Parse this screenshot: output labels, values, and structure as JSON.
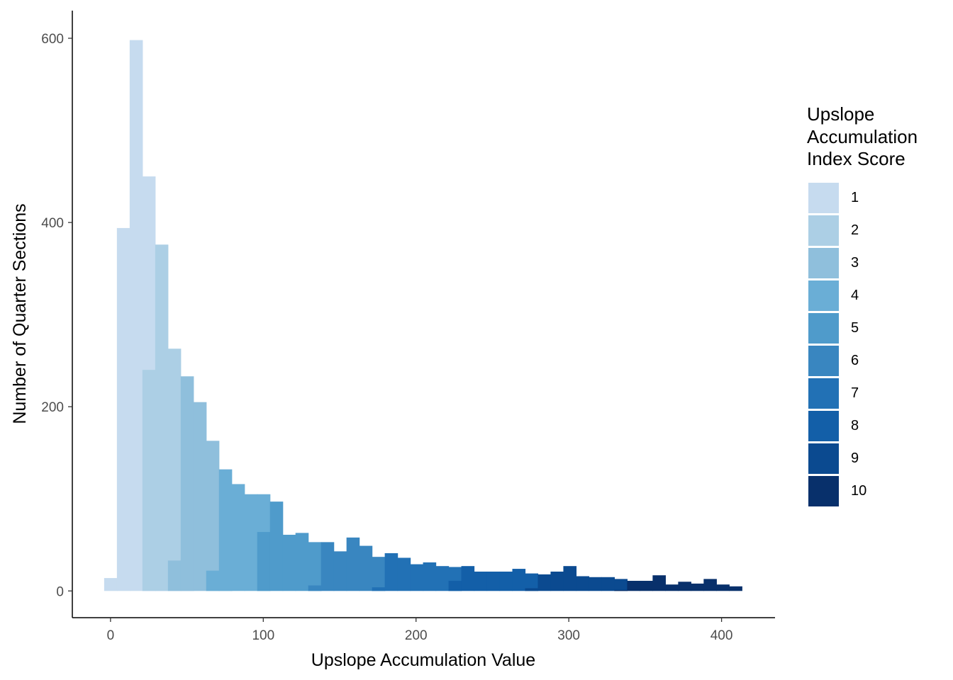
{
  "chart_data": {
    "type": "bar",
    "subtype": "histogram",
    "title": "",
    "xlabel": "Upslope Accumulation Value",
    "ylabel": "Number of Quarter Sections",
    "xlim": [
      -25,
      435
    ],
    "ylim": [
      -29,
      630
    ],
    "xticks": [
      0,
      100,
      200,
      300,
      400
    ],
    "yticks": [
      0,
      200,
      400,
      600
    ],
    "grid": false,
    "legend_position": "right",
    "legend_title": "Upslope Accumulation Index Score",
    "bin_width": 8.35,
    "series": [
      {
        "name": "1",
        "color": "#c6dbef",
        "bins": [
          [
            0,
            14
          ],
          [
            8.35,
            394
          ],
          [
            16.7,
            598
          ],
          [
            25.05,
            450
          ],
          [
            33.4,
            240
          ]
        ]
      },
      {
        "name": "2",
        "color": "#accfe5",
        "bins": [
          [
            25.05,
            240
          ],
          [
            33.4,
            376
          ],
          [
            41.75,
            263
          ],
          [
            50.1,
            33
          ]
        ]
      },
      {
        "name": "3",
        "color": "#8fbfdc",
        "bins": [
          [
            41.75,
            33
          ],
          [
            50.1,
            233
          ],
          [
            58.45,
            205
          ],
          [
            66.8,
            163
          ],
          [
            75.15,
            22
          ]
        ]
      },
      {
        "name": "4",
        "color": "#6aaed6",
        "bins": [
          [
            66.8,
            22
          ],
          [
            75.15,
            132
          ],
          [
            83.5,
            116
          ],
          [
            91.85,
            105
          ],
          [
            100.2,
            105
          ]
        ]
      },
      {
        "name": "5",
        "color": "#4f9bcb",
        "bins": [
          [
            100.2,
            64
          ],
          [
            108.55,
            97
          ],
          [
            116.9,
            61
          ],
          [
            125.25,
            63
          ],
          [
            133.6,
            53
          ]
        ]
      },
      {
        "name": "6",
        "color": "#3986c0",
        "bins": [
          [
            133.6,
            6
          ],
          [
            141.95,
            53
          ],
          [
            150.3,
            43
          ],
          [
            158.65,
            58
          ],
          [
            167,
            49
          ],
          [
            175.35,
            37
          ]
        ]
      },
      {
        "name": "7",
        "color": "#2271b5",
        "bins": [
          [
            175.35,
            4
          ],
          [
            183.7,
            41
          ],
          [
            192.05,
            36
          ],
          [
            200.4,
            29
          ],
          [
            208.75,
            31
          ],
          [
            217.1,
            27
          ],
          [
            225.45,
            26
          ]
        ]
      },
      {
        "name": "8",
        "color": "#135fa8",
        "bins": [
          [
            225.45,
            11
          ],
          [
            233.8,
            27
          ],
          [
            242.15,
            21
          ],
          [
            250.5,
            21
          ],
          [
            258.85,
            21
          ],
          [
            267.2,
            24
          ],
          [
            275.55,
            19
          ]
        ]
      },
      {
        "name": "9",
        "color": "#0b4a90",
        "bins": [
          [
            275.55,
            3
          ],
          [
            283.9,
            18
          ],
          [
            292.25,
            21
          ],
          [
            300.6,
            27
          ],
          [
            308.95,
            16
          ],
          [
            317.3,
            15
          ],
          [
            325.65,
            15
          ],
          [
            334,
            13
          ]
        ]
      },
      {
        "name": "10",
        "color": "#08306b",
        "bins": [
          [
            334,
            1
          ],
          [
            342.35,
            11
          ],
          [
            350.7,
            11
          ],
          [
            359.05,
            17
          ],
          [
            367.4,
            7
          ],
          [
            375.75,
            10
          ],
          [
            384.1,
            8
          ],
          [
            392.45,
            13
          ],
          [
            400.8,
            7
          ],
          [
            409.15,
            5
          ]
        ]
      }
    ]
  }
}
